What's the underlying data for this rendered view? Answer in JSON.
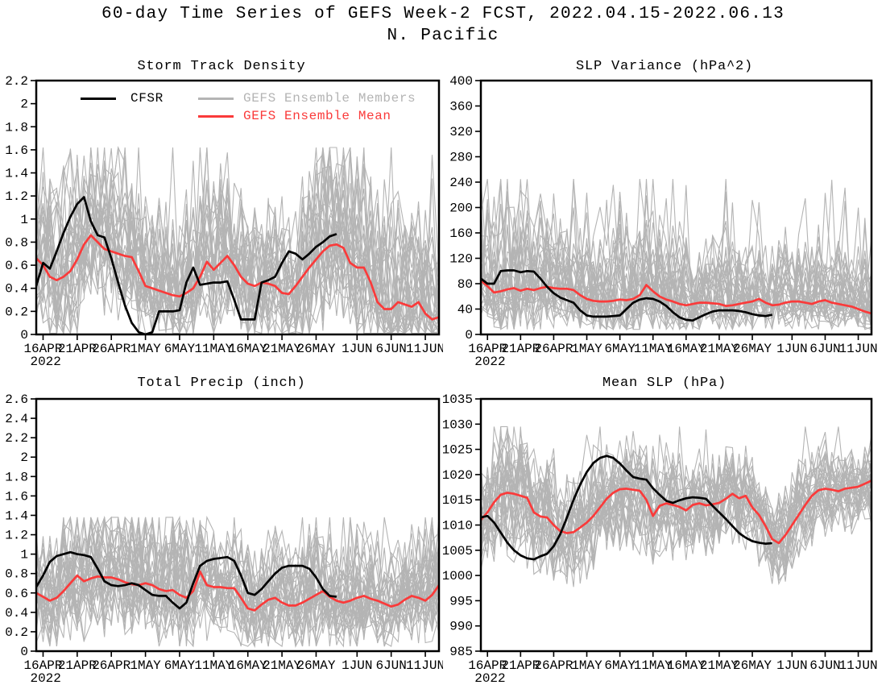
{
  "page": {
    "title": "60-day Time Series of GEFS Week-2 FCST, 2022.04.15-2022.06.13",
    "subtitle": "N. Pacific"
  },
  "legend": {
    "cfsr_label": "CFSR",
    "members_label": "GEFS Ensemble Members",
    "mean_label": "GEFS Ensemble Mean"
  },
  "colors": {
    "cfsr": "#000000",
    "members": "#b4b4b4",
    "mean": "#fa3a3a",
    "axis": "#000000"
  },
  "x_axis": {
    "n_days": 60,
    "tick_days": [
      1,
      6,
      11,
      16,
      21,
      26,
      31,
      36,
      41,
      47,
      52,
      57
    ],
    "tick_labels": [
      "16APR",
      "21APR",
      "26APR",
      "1MAY",
      "6MAY",
      "11MAY",
      "16MAY",
      "21MAY",
      "26MAY",
      "1JUN",
      "6JUN",
      "11JUN"
    ],
    "year_label": "2022"
  },
  "chart_data": [
    {
      "type": "line",
      "title": "Storm Track Density",
      "ylim": [
        0,
        2.2
      ],
      "ytick_step": 0.2,
      "grid": false,
      "legend_position": "top-left-inside",
      "series": [
        {
          "name": "GEFS Ensemble Mean",
          "color_key": "mean",
          "values": [
            0.66,
            0.6,
            0.5,
            0.47,
            0.5,
            0.55,
            0.65,
            0.78,
            0.86,
            0.8,
            0.74,
            0.72,
            0.7,
            0.68,
            0.67,
            0.55,
            0.42,
            0.4,
            0.38,
            0.36,
            0.34,
            0.33,
            0.36,
            0.4,
            0.5,
            0.63,
            0.56,
            0.62,
            0.68,
            0.6,
            0.5,
            0.44,
            0.42,
            0.45,
            0.44,
            0.42,
            0.36,
            0.35,
            0.42,
            0.5,
            0.58,
            0.65,
            0.72,
            0.77,
            0.78,
            0.75,
            0.62,
            0.58,
            0.58,
            0.45,
            0.28,
            0.22,
            0.22,
            0.28,
            0.26,
            0.24,
            0.28,
            0.18,
            0.13,
            0.15
          ]
        },
        {
          "name": "CFSR",
          "color_key": "cfsr",
          "values": [
            0.42,
            0.62,
            0.57,
            0.72,
            0.88,
            1.02,
            1.13,
            1.19,
            0.98,
            0.86,
            0.84,
            0.66,
            0.45,
            0.25,
            0.1,
            0.02,
            0.0,
            0.02,
            0.2,
            0.2,
            0.2,
            0.21,
            0.45,
            0.58,
            0.43,
            0.44,
            0.45,
            0.45,
            0.46,
            0.3,
            0.13,
            0.13,
            0.13,
            0.45,
            0.47,
            0.5,
            0.62,
            0.72,
            0.7,
            0.65,
            0.7,
            0.76,
            0.8,
            0.85,
            0.87
          ]
        }
      ],
      "ensemble": {
        "name": "GEFS Ensemble Members",
        "color_key": "members",
        "n_members": 32,
        "spread_ctrl": [
          0.45,
          0.55,
          0.5,
          0.42,
          0.4,
          0.45,
          0.45,
          0.45,
          0.55,
          0.58,
          0.5,
          0.42
        ],
        "skew_up": 1.45,
        "skew_down": 1.0,
        "clip_min": 0.01,
        "clip_max": 1.62,
        "spike_prob": 0.03,
        "seed": 11
      }
    },
    {
      "type": "line",
      "title": "SLP Variance (hPa^2)",
      "ylim": [
        0,
        400
      ],
      "ytick_step": 40,
      "grid": false,
      "series": [
        {
          "name": "GEFS Ensemble Mean",
          "color_key": "mean",
          "values": [
            85,
            76,
            66,
            68,
            71,
            73,
            69,
            72,
            70,
            73,
            75,
            73,
            72,
            72,
            70,
            62,
            56,
            53,
            52,
            52,
            53,
            55,
            54,
            56,
            62,
            78,
            68,
            60,
            55,
            52,
            48,
            46,
            48,
            50,
            50,
            49,
            48,
            45,
            46,
            48,
            50,
            52,
            56,
            50,
            46,
            47,
            50,
            52,
            52,
            50,
            48,
            52,
            54,
            50,
            48,
            46,
            44,
            40,
            36,
            33
          ]
        },
        {
          "name": "CFSR",
          "color_key": "cfsr",
          "values": [
            88,
            80,
            80,
            100,
            101,
            101,
            98,
            100,
            99,
            88,
            75,
            65,
            58,
            54,
            50,
            38,
            30,
            28,
            28,
            28,
            29,
            30,
            40,
            50,
            55,
            57,
            56,
            52,
            45,
            35,
            27,
            23,
            22,
            27,
            32,
            36,
            38,
            38,
            38,
            37,
            35,
            32,
            30,
            29,
            31
          ]
        }
      ],
      "ensemble": {
        "name": "GEFS Ensemble Members",
        "color_key": "members",
        "n_members": 32,
        "spread_ctrl": [
          55,
          75,
          60,
          50,
          58,
          55,
          45,
          45,
          44,
          40,
          44,
          34
        ],
        "skew_up": 1.8,
        "skew_down": 0.85,
        "clip_min": 8,
        "clip_max": 245,
        "spike_prob": 0.05,
        "seed": 22
      }
    },
    {
      "type": "line",
      "title": "Total Precip (inch)",
      "ylim": [
        0,
        2.6
      ],
      "ytick_step": 0.2,
      "grid": false,
      "series": [
        {
          "name": "GEFS Ensemble Mean",
          "color_key": "mean",
          "values": [
            0.6,
            0.56,
            0.52,
            0.55,
            0.62,
            0.7,
            0.78,
            0.72,
            0.75,
            0.77,
            0.76,
            0.76,
            0.74,
            0.71,
            0.69,
            0.68,
            0.7,
            0.68,
            0.64,
            0.62,
            0.63,
            0.58,
            0.55,
            0.62,
            0.82,
            0.68,
            0.66,
            0.66,
            0.65,
            0.65,
            0.55,
            0.44,
            0.42,
            0.48,
            0.53,
            0.55,
            0.5,
            0.47,
            0.47,
            0.5,
            0.54,
            0.58,
            0.62,
            0.56,
            0.52,
            0.5,
            0.52,
            0.55,
            0.57,
            0.54,
            0.52,
            0.49,
            0.46,
            0.48,
            0.53,
            0.57,
            0.55,
            0.52,
            0.58,
            0.68
          ]
        },
        {
          "name": "CFSR",
          "color_key": "cfsr",
          "values": [
            0.66,
            0.78,
            0.92,
            0.98,
            1.0,
            1.02,
            1.0,
            0.99,
            0.97,
            0.85,
            0.72,
            0.68,
            0.67,
            0.68,
            0.7,
            0.68,
            0.63,
            0.58,
            0.57,
            0.57,
            0.5,
            0.44,
            0.5,
            0.7,
            0.88,
            0.93,
            0.95,
            0.96,
            0.97,
            0.93,
            0.78,
            0.6,
            0.58,
            0.64,
            0.72,
            0.8,
            0.86,
            0.88,
            0.88,
            0.88,
            0.85,
            0.76,
            0.64,
            0.57,
            0.56
          ]
        }
      ],
      "ensemble": {
        "name": "GEFS Ensemble Members",
        "color_key": "members",
        "n_members": 32,
        "spread_ctrl": [
          0.45,
          0.5,
          0.5,
          0.45,
          0.5,
          0.45,
          0.4,
          0.45,
          0.45,
          0.4,
          0.4,
          0.45
        ],
        "skew_up": 1.35,
        "skew_down": 1.0,
        "clip_min": 0.05,
        "clip_max": 1.38,
        "spike_prob": 0.03,
        "seed": 33
      }
    },
    {
      "type": "line",
      "title": "Mean SLP (hPa)",
      "ylim": [
        985,
        1035
      ],
      "ytick_step": 5,
      "grid": false,
      "series": [
        {
          "name": "GEFS Ensemble Mean",
          "color_key": "mean",
          "values": [
            1011.0,
            1012.5,
            1014.5,
            1016.0,
            1016.4,
            1016.2,
            1015.8,
            1015.4,
            1012.5,
            1011.7,
            1011.5,
            1010.0,
            1008.8,
            1008.4,
            1008.6,
            1009.5,
            1010.5,
            1011.8,
            1013.5,
            1015.2,
            1016.4,
            1017.1,
            1017.2,
            1017.0,
            1016.8,
            1015.0,
            1011.8,
            1013.8,
            1014.3,
            1014.0,
            1013.6,
            1012.9,
            1014.0,
            1014.3,
            1013.9,
            1014.1,
            1014.4,
            1015.2,
            1016.2,
            1015.3,
            1015.8,
            1013.5,
            1012.0,
            1009.8,
            1007.2,
            1006.4,
            1008.0,
            1010.0,
            1012.0,
            1014.0,
            1015.8,
            1016.9,
            1017.2,
            1017.0,
            1016.7,
            1017.2,
            1017.4,
            1017.6,
            1018.2,
            1018.8
          ]
        },
        {
          "name": "CFSR",
          "color_key": "cfsr",
          "values": [
            1011.5,
            1011.8,
            1010.5,
            1008.5,
            1006.5,
            1005.0,
            1004.0,
            1003.4,
            1003.2,
            1003.8,
            1004.3,
            1005.8,
            1008.2,
            1011.5,
            1015.0,
            1018.0,
            1020.5,
            1022.3,
            1023.3,
            1023.7,
            1023.3,
            1022.2,
            1020.8,
            1019.5,
            1019.2,
            1019.0,
            1017.3,
            1016.0,
            1014.8,
            1014.4,
            1014.9,
            1015.3,
            1015.5,
            1015.4,
            1015.2,
            1013.8,
            1012.5,
            1011.2,
            1009.8,
            1008.4,
            1007.5,
            1006.8,
            1006.5,
            1006.3,
            1006.4
          ]
        }
      ],
      "ensemble": {
        "name": "GEFS Ensemble Members",
        "color_key": "members",
        "n_members": 32,
        "spread_ctrl": [
          7.5,
          9.0,
          8.0,
          7.0,
          7.5,
          7.0,
          6.5,
          6.5,
          6.0,
          6.5,
          5.5,
          5.5
        ],
        "skew_up": 1.25,
        "skew_down": 1.3,
        "clip_min": 996,
        "clip_max": 1029.5,
        "spike_prob": 0.02,
        "seed": 44
      }
    }
  ]
}
